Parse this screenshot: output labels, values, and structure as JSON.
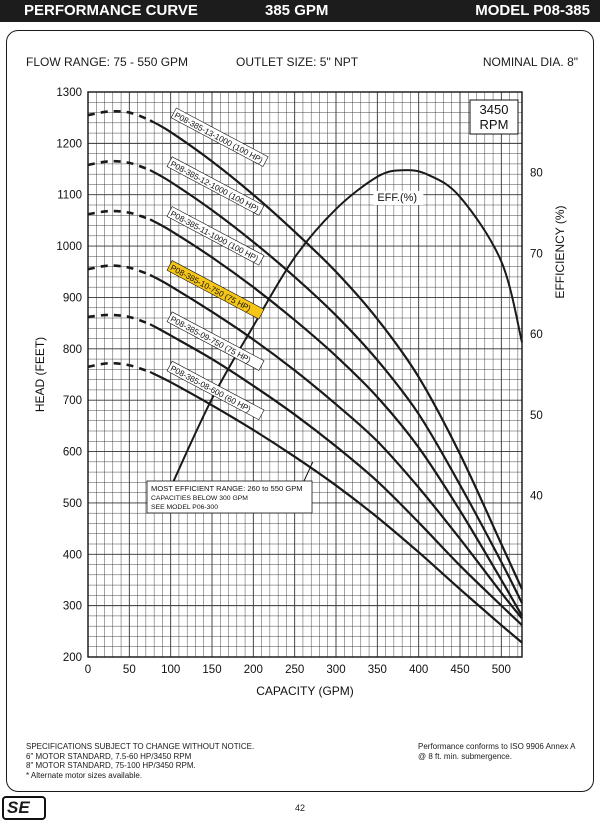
{
  "header": {
    "left": "PERFORMANCE CURVE",
    "center": "385 GPM",
    "right": "MODEL  P08-385"
  },
  "specs": {
    "flow_range": "FLOW RANGE: 75 - 550 GPM",
    "outlet_size": "OUTLET SIZE: 5\" NPT",
    "nominal_dia": "NOMINAL DIA. 8\""
  },
  "chart_data": {
    "type": "line",
    "rpm_line1": "3450",
    "rpm_line2": "RPM",
    "xlabel": "CAPACITY (GPM)",
    "ylabel": "HEAD (FEET)",
    "ylabel_right": "EFFICIENCY (%)",
    "xlim": [
      0,
      525
    ],
    "ylim": [
      200,
      1300
    ],
    "ylim_right": [
      20,
      90
    ],
    "x_ticks": [
      0,
      50,
      100,
      150,
      200,
      250,
      300,
      350,
      400,
      450,
      500
    ],
    "y_ticks": [
      200,
      300,
      400,
      500,
      600,
      700,
      800,
      900,
      1000,
      1100,
      1200,
      1300
    ],
    "y_right_ticks": [
      40,
      50,
      60,
      70,
      80
    ],
    "grid": true,
    "series": [
      {
        "name": "P08-385-13-1000 (100 HP)",
        "label_anchor": [
          105,
          1255
        ],
        "highlight": false,
        "x": [
          0,
          25,
          50,
          75,
          100,
          150,
          200,
          250,
          300,
          350,
          400,
          450,
          500,
          525
        ],
        "y": [
          1255,
          1262,
          1260,
          1245,
          1222,
          1165,
          1100,
          1028,
          950,
          858,
          745,
          595,
          420,
          332
        ]
      },
      {
        "name": "P08-385-12-1000 (100 HP)",
        "label_anchor": [
          100,
          1160
        ],
        "highlight": false,
        "x": [
          0,
          25,
          50,
          75,
          100,
          150,
          200,
          250,
          300,
          350,
          400,
          450,
          500,
          525
        ],
        "y": [
          1158,
          1165,
          1162,
          1148,
          1125,
          1070,
          1008,
          940,
          865,
          778,
          673,
          535,
          385,
          305
        ]
      },
      {
        "name": "P08-385-11-1000 (100 HP)",
        "label_anchor": [
          100,
          1063
        ],
        "highlight": false,
        "x": [
          0,
          25,
          50,
          75,
          100,
          150,
          200,
          250,
          300,
          350,
          400,
          450,
          500,
          525
        ],
        "y": [
          1062,
          1068,
          1065,
          1052,
          1030,
          978,
          920,
          856,
          786,
          706,
          608,
          485,
          350,
          280
        ]
      },
      {
        "name": "P08-385-10-750 (75 HP)",
        "label_anchor": [
          100,
          958
        ],
        "highlight": true,
        "x": [
          0,
          25,
          50,
          75,
          100,
          150,
          200,
          250,
          300,
          350,
          400,
          450,
          500,
          525
        ],
        "y": [
          955,
          962,
          958,
          944,
          922,
          872,
          818,
          758,
          692,
          620,
          530,
          430,
          325,
          275
        ]
      },
      {
        "name": "P08-385-09-750 (75 HP)",
        "label_anchor": [
          100,
          858
        ],
        "highlight": false,
        "x": [
          0,
          25,
          50,
          75,
          100,
          150,
          200,
          250,
          300,
          350,
          400,
          450,
          500,
          525
        ],
        "y": [
          862,
          866,
          862,
          848,
          826,
          780,
          728,
          672,
          610,
          542,
          462,
          378,
          300,
          262
        ]
      },
      {
        "name": "P08-385-08-600 (60 HP)",
        "label_anchor": [
          100,
          762
        ],
        "highlight": false,
        "x": [
          0,
          25,
          50,
          75,
          100,
          150,
          200,
          250,
          300,
          350,
          400,
          450,
          500,
          525
        ],
        "y": [
          765,
          772,
          768,
          755,
          735,
          690,
          642,
          590,
          534,
          472,
          404,
          332,
          262,
          228
        ]
      }
    ],
    "dash_until_x": 75,
    "efficiency_curve": {
      "name": "EFF.(%)",
      "x": [
        100,
        150,
        200,
        250,
        300,
        350,
        380,
        410,
        450,
        500,
        525
      ],
      "y": [
        41,
        52,
        61,
        69.5,
        75.5,
        79.5,
        80.3,
        79.8,
        77,
        69,
        59
      ]
    },
    "annotation": {
      "line1": "MOST EFFICIENT RANGE: 260 to 550 GPM",
      "line2": "CAPACITIES BELOW 300 GPM",
      "line3": "SEE  MODEL  P06-300",
      "pointer_to": [
        272,
        580
      ]
    }
  },
  "footer": {
    "line1": "SPECIFICATIONS SUBJECT TO CHANGE WITHOUT NOTICE.",
    "line2": "6\" MOTOR STANDARD, 7.5-60 HP/3450 RPM",
    "line3": "8\" MOTOR STANDARD, 75-100 HP/3450 RPM.",
    "line4": "* Alternate motor sizes available.",
    "iso1": "Performance conforms to ISO 9906 Annex A",
    "iso2": "@ 8 ft. min. submergence.",
    "page_number": "42",
    "logo": "SE"
  },
  "colors": {
    "topbar": "#1c1c1c",
    "highlight": "#f5c518",
    "curve": "#1a1a1a",
    "grid": "#333333"
  }
}
